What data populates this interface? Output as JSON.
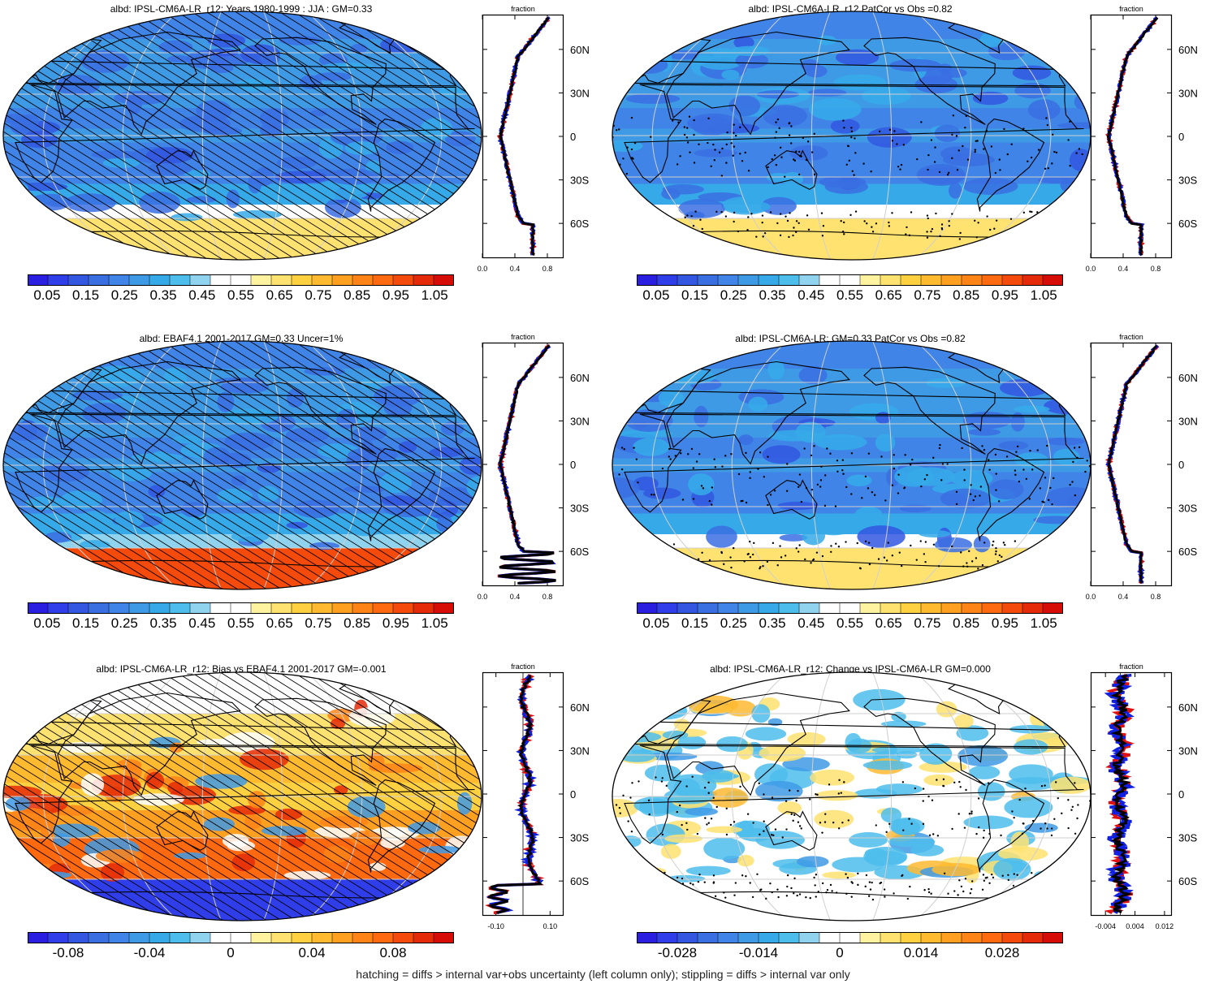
{
  "panels": [
    {
      "id": "p1",
      "title": "albd: IPSL-CM6A-LR_r12: Years 1980-1999 : JJA : GM=0.33",
      "palette": "abs",
      "overlay": "hatch",
      "map_variant": "model",
      "colorbar_labels": [
        "0.05",
        "0.15",
        "0.25",
        "0.35",
        "0.45",
        "0.55",
        "0.65",
        "0.75",
        "0.85",
        "0.95",
        "1.05"
      ],
      "profile": {
        "header": "fraction",
        "xticks": [
          "0.0",
          "0.4",
          "0.8"
        ],
        "xrange": [
          0,
          1
        ],
        "lat_ticks": [
          "60N",
          "30N",
          "0",
          "30S",
          "60S"
        ],
        "variant": "abs_model"
      }
    },
    {
      "id": "p2",
      "title": "albd: IPSL-CM6A-LR_r12 PatCor vs Obs =0.82",
      "palette": "abs",
      "overlay": "stipple",
      "map_variant": "model",
      "colorbar_labels": [
        "0.05",
        "0.15",
        "0.25",
        "0.35",
        "0.45",
        "0.55",
        "0.65",
        "0.75",
        "0.85",
        "0.95",
        "1.05"
      ],
      "profile": {
        "header": "fraction",
        "xticks": [
          "0.0",
          "0.4",
          "0.8"
        ],
        "xrange": [
          0,
          1
        ],
        "lat_ticks": [
          "60N",
          "30N",
          "0",
          "30S",
          "60S"
        ],
        "variant": "abs_model"
      }
    },
    {
      "id": "p3",
      "title": "albd: EBAF4.1 2001-2017 GM=0.33 Uncer=1%",
      "palette": "abs",
      "overlay": "hatch",
      "map_variant": "obs",
      "colorbar_labels": [
        "0.05",
        "0.15",
        "0.25",
        "0.35",
        "0.45",
        "0.55",
        "0.65",
        "0.75",
        "0.85",
        "0.95",
        "1.05"
      ],
      "profile": {
        "header": "fraction",
        "xticks": [
          "0.0",
          "0.4",
          "0.8"
        ],
        "xrange": [
          0,
          1
        ],
        "lat_ticks": [
          "60N",
          "30N",
          "0",
          "30S",
          "60S"
        ],
        "variant": "abs_obs"
      }
    },
    {
      "id": "p4",
      "title": "albd: IPSL-CM6A-LR: GM=0.33 PatCor vs Obs =0.82",
      "palette": "abs",
      "overlay": "stipple",
      "map_variant": "model",
      "colorbar_labels": [
        "0.05",
        "0.15",
        "0.25",
        "0.35",
        "0.45",
        "0.55",
        "0.65",
        "0.75",
        "0.85",
        "0.95",
        "1.05"
      ],
      "profile": {
        "header": "fraction",
        "xticks": [
          "0.0",
          "0.4",
          "0.8"
        ],
        "xrange": [
          0,
          1
        ],
        "lat_ticks": [
          "60N",
          "30N",
          "0",
          "30S",
          "60S"
        ],
        "variant": "abs_model"
      }
    },
    {
      "id": "p5",
      "title": "albd: IPSL-CM6A-LR_r12: Bias vs EBAF4.1 2001-2017 GM=-0.001",
      "palette": "diff",
      "overlay": "hatch",
      "map_variant": "bias",
      "colorbar_labels": [
        "-0.08",
        "-0.04",
        "0",
        "0.04",
        "0.08"
      ],
      "profile": {
        "header": "fraction",
        "xticks": [
          "-0.10",
          "0.10"
        ],
        "xrange": [
          -0.15,
          0.15
        ],
        "lat_ticks": [
          "60N",
          "30N",
          "0",
          "30S",
          "60S"
        ],
        "variant": "bias"
      }
    },
    {
      "id": "p6",
      "title": "albd: IPSL-CM6A-LR_r12: Change vs IPSL-CM6A-LR GM=0.000",
      "palette": "diff",
      "overlay": "stipple",
      "map_variant": "change",
      "colorbar_labels": [
        "-0.028",
        "-0.014",
        "0",
        "0.014",
        "0.028"
      ],
      "profile": {
        "header": "fraction",
        "xticks": [
          "-0.004",
          "0.004",
          "0.012"
        ],
        "xrange": [
          -0.008,
          0.014
        ],
        "lat_ticks": [
          "60N",
          "30N",
          "0",
          "30S",
          "60S"
        ],
        "variant": "change"
      }
    }
  ],
  "palettes": {
    "abs": [
      "#2a1fe0",
      "#2f3ee8",
      "#3357e0",
      "#3a6fe2",
      "#3f84e6",
      "#3f9ae6",
      "#36aae9",
      "#4dbdec",
      "#8fd3ef",
      "#ffffff",
      "#ffffff",
      "#fff3a0",
      "#ffe270",
      "#ffd040",
      "#ffba30",
      "#ffa020",
      "#ff8418",
      "#ff6a10",
      "#f44a0c",
      "#e42a08",
      "#d60c06"
    ],
    "diff": [
      "#2a1fe0",
      "#2f3ee8",
      "#3357e0",
      "#3a6fe2",
      "#3f84e6",
      "#3f9ae6",
      "#36aae9",
      "#4dbdec",
      "#8fd3ef",
      "#ffffff",
      "#ffffff",
      "#fff3a0",
      "#ffe270",
      "#ffd040",
      "#ffba30",
      "#ffa020",
      "#ff8418",
      "#ff6a10",
      "#f44a0c",
      "#e42a08",
      "#d60c06"
    ]
  },
  "chart_data": [
    {
      "type": "heatmap",
      "title": "albd: IPSL-CM6A-LR_r12: Years 1980-1999 : JJA : GM=0.33",
      "colorbar": [
        0.05,
        0.15,
        0.25,
        0.35,
        0.45,
        0.55,
        0.65,
        0.75,
        0.85,
        0.95,
        1.05
      ]
    },
    {
      "type": "heatmap",
      "title": "albd: IPSL-CM6A-LR_r12 PatCor vs Obs =0.82",
      "colorbar": [
        0.05,
        0.15,
        0.25,
        0.35,
        0.45,
        0.55,
        0.65,
        0.75,
        0.85,
        0.95,
        1.05
      ]
    },
    {
      "type": "heatmap",
      "title": "albd: EBAF4.1 2001-2017 GM=0.33 Uncer=1%",
      "colorbar": [
        0.05,
        0.15,
        0.25,
        0.35,
        0.45,
        0.55,
        0.65,
        0.75,
        0.85,
        0.95,
        1.05
      ]
    },
    {
      "type": "heatmap",
      "title": "albd: IPSL-CM6A-LR: GM=0.33 PatCor vs Obs =0.82",
      "colorbar": [
        0.05,
        0.15,
        0.25,
        0.35,
        0.45,
        0.55,
        0.65,
        0.75,
        0.85,
        0.95,
        1.05
      ]
    },
    {
      "type": "heatmap",
      "title": "albd: IPSL-CM6A-LR_r12: Bias vs EBAF4.1 2001-2017 GM=-0.001",
      "colorbar": [
        -0.08,
        -0.04,
        0,
        0.04,
        0.08
      ]
    },
    {
      "type": "heatmap",
      "title": "albd: IPSL-CM6A-LR_r12: Change vs IPSL-CM6A-LR GM=0.000",
      "colorbar": [
        -0.028,
        -0.014,
        0,
        0.014,
        0.028
      ]
    }
  ],
  "footer": "hatching = diffs > internal var+obs uncertainty (left column only); stippling = diffs > internal var only"
}
